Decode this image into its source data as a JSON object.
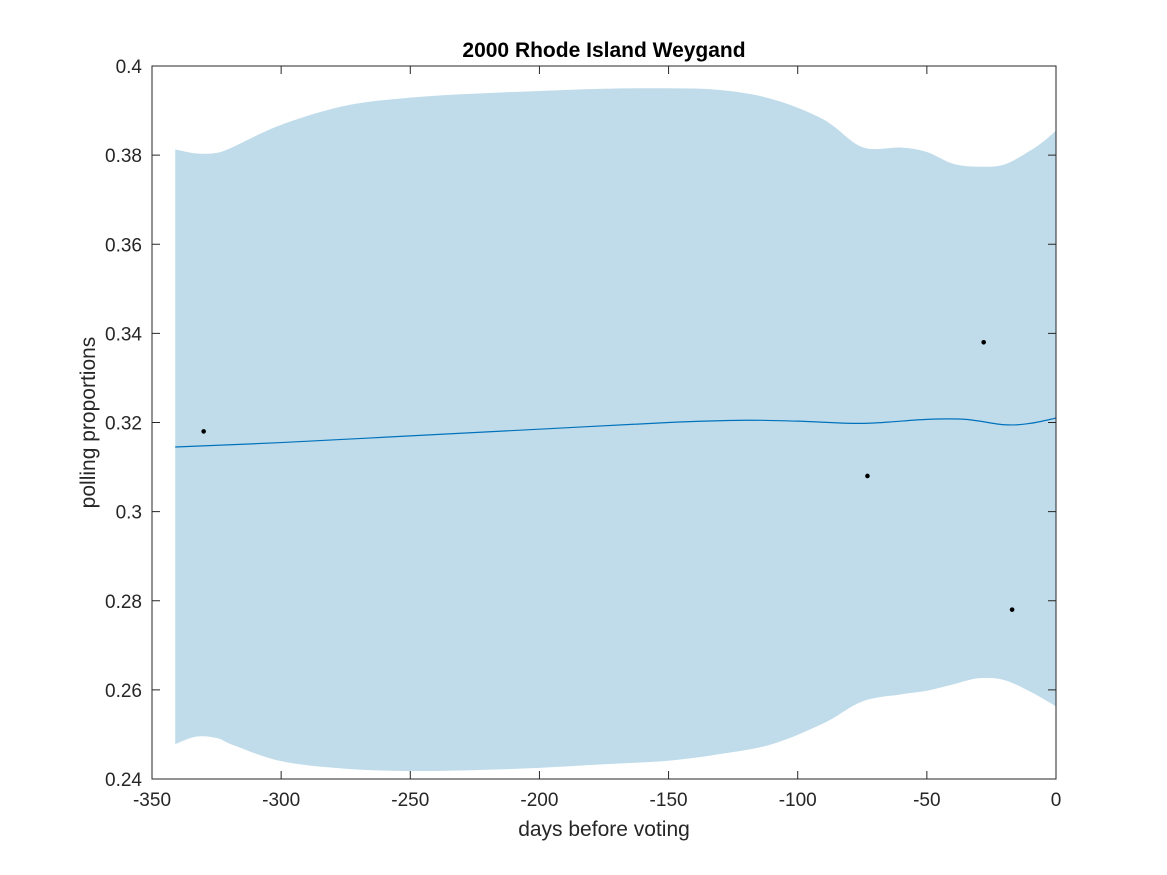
{
  "chart_data": {
    "type": "line",
    "title": "2000 Rhode Island Weygand",
    "xlabel": "days before voting",
    "ylabel": "polling proportions",
    "xlim": [
      -350,
      0
    ],
    "ylim": [
      0.24,
      0.4
    ],
    "xticks": [
      -350,
      -300,
      -250,
      -200,
      -150,
      -100,
      -50,
      0
    ],
    "xtick_labels": [
      "-350",
      "-300",
      "-250",
      "-200",
      "-150",
      "-100",
      "-50",
      "0"
    ],
    "yticks": [
      0.24,
      0.26,
      0.28,
      0.3,
      0.32,
      0.34,
      0.36,
      0.38,
      0.4
    ],
    "ytick_labels": [
      "0.24",
      "0.26",
      "0.28",
      "0.3",
      "0.32",
      "0.34",
      "0.36",
      "0.38",
      "0.4"
    ],
    "grid": false,
    "colors": {
      "band": "#c0dcea",
      "line": "#0072bd",
      "points": "#000000",
      "axes": "#262626"
    },
    "series": [
      {
        "type": "line",
        "x": [
          -341,
          -300,
          -250,
          -200,
          -150,
          -120,
          -100,
          -75,
          -50,
          -35,
          -20,
          -10,
          0
        ],
        "y": [
          0.3145,
          0.3155,
          0.317,
          0.3185,
          0.32,
          0.3205,
          0.3203,
          0.3198,
          0.3207,
          0.3207,
          0.3195,
          0.3198,
          0.321
        ]
      },
      {
        "type": "band",
        "x": [
          -341,
          -333,
          -325,
          -318,
          -300,
          -275,
          -250,
          -225,
          -200,
          -175,
          -150,
          -130,
          -110,
          -90,
          -75,
          -60,
          -50,
          -40,
          -30,
          -20,
          -10,
          -5,
          0
        ],
        "upper": [
          0.3813,
          0.3804,
          0.3805,
          0.382,
          0.3868,
          0.3911,
          0.3929,
          0.3938,
          0.3944,
          0.3949,
          0.395,
          0.3946,
          0.3926,
          0.388,
          0.3818,
          0.3817,
          0.3807,
          0.3781,
          0.3774,
          0.3779,
          0.381,
          0.383,
          0.3855
        ],
        "lower": [
          0.2478,
          0.2495,
          0.2492,
          0.2475,
          0.244,
          0.2423,
          0.2418,
          0.242,
          0.2425,
          0.2433,
          0.2441,
          0.2456,
          0.2478,
          0.2525,
          0.2574,
          0.259,
          0.2598,
          0.2612,
          0.2626,
          0.2622,
          0.2596,
          0.258,
          0.2563
        ]
      },
      {
        "type": "scatter",
        "x": [
          -330,
          -73,
          -28,
          -17
        ],
        "y": [
          0.318,
          0.308,
          0.338,
          0.278
        ]
      }
    ]
  }
}
